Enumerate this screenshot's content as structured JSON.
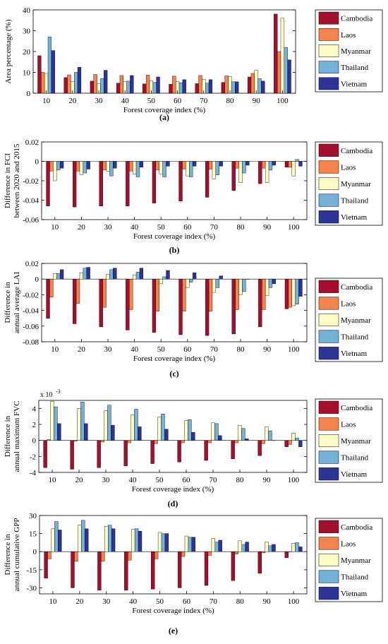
{
  "categories_label": "Forest coverage index (%)",
  "legend": [
    "Cambodia",
    "Laos",
    "Myanmar",
    "Thailand",
    "Vietnam"
  ],
  "colors": [
    "#A50F2D",
    "#F4844C",
    "#FEFCC4",
    "#74B2D9",
    "#2C3597"
  ],
  "chart_data": [
    {
      "type": "bar",
      "panel_label": "(a)",
      "ylabel": "Area percentage (%)",
      "xlabel": "Forest coverage index (%)",
      "categories": [
        "10",
        "20",
        "30",
        "40",
        "50",
        "60",
        "70",
        "80",
        "90",
        "100"
      ],
      "ylim": [
        0,
        40
      ],
      "yticks": [
        0,
        10,
        20,
        30,
        40
      ],
      "ytick_labels": [
        "0",
        "10",
        "20",
        "30",
        "40"
      ],
      "exponent_label": "",
      "series": [
        {
          "name": "Cambodia",
          "values": [
            18,
            7.5,
            5.8,
            4.8,
            4.5,
            4.3,
            4.6,
            5.2,
            7.8,
            38
          ]
        },
        {
          "name": "Laos",
          "values": [
            10,
            8.8,
            9,
            8.5,
            8.7,
            8.2,
            8.5,
            8.3,
            9.5,
            20
          ]
        },
        {
          "name": "Myanmar",
          "values": [
            9.5,
            5.5,
            4.5,
            5.5,
            6,
            5.7,
            6.7,
            8,
            11,
            36
          ]
        },
        {
          "name": "Thailand",
          "values": [
            27,
            10,
            7,
            5.8,
            5.2,
            5,
            4.8,
            5.5,
            7,
            22
          ]
        },
        {
          "name": "Vietnam",
          "values": [
            20.5,
            12.5,
            11,
            8.5,
            7.8,
            6.5,
            6.5,
            5.5,
            5.8,
            16
          ]
        }
      ]
    },
    {
      "type": "bar",
      "panel_label": "(b)",
      "ylabel": [
        "Difference in FCI",
        "between 2020 and 2015"
      ],
      "xlabel": "Forest coverage index (%)",
      "categories": [
        "10",
        "20",
        "30",
        "40",
        "50",
        "60",
        "70",
        "80",
        "90",
        "100"
      ],
      "ylim": [
        -0.06,
        0.02
      ],
      "yticks": [
        -0.06,
        -0.04,
        -0.02,
        0,
        0.02
      ],
      "ytick_labels": [
        "-0.06",
        "-0.04",
        "-0.02",
        "0",
        "0.02"
      ],
      "exponent_label": "",
      "series": [
        {
          "name": "Cambodia",
          "values": [
            -0.046,
            -0.047,
            -0.046,
            -0.046,
            -0.043,
            -0.041,
            -0.037,
            -0.03,
            -0.023,
            -0.006
          ]
        },
        {
          "name": "Laos",
          "values": [
            -0.01,
            -0.01,
            -0.009,
            -0.01,
            -0.009,
            -0.008,
            -0.008,
            -0.007,
            -0.007,
            -0.006
          ]
        },
        {
          "name": "Myanmar",
          "values": [
            -0.02,
            -0.014,
            -0.01,
            -0.013,
            -0.013,
            -0.015,
            -0.018,
            -0.022,
            -0.022,
            -0.015
          ]
        },
        {
          "name": "Thailand",
          "values": [
            -0.009,
            -0.012,
            -0.015,
            -0.016,
            -0.016,
            -0.016,
            -0.014,
            -0.012,
            -0.009,
            0.002
          ]
        },
        {
          "name": "Vietnam",
          "values": [
            -0.007,
            -0.008,
            -0.007,
            -0.006,
            -0.005,
            -0.005,
            -0.005,
            -0.004,
            -0.004,
            -0.005
          ]
        }
      ]
    },
    {
      "type": "bar",
      "panel_label": "(c)",
      "ylabel": [
        "Difference in",
        "annual average LAI"
      ],
      "xlabel": "Forest coverage index (%)",
      "categories": [
        "10",
        "20",
        "30",
        "40",
        "50",
        "60",
        "70",
        "80",
        "90",
        "100"
      ],
      "ylim": [
        -0.08,
        0.02
      ],
      "yticks": [
        -0.08,
        -0.06,
        -0.04,
        -0.02,
        0,
        0.02
      ],
      "ytick_labels": [
        "-0.08",
        "-0.06",
        "-0.04",
        "-0.02",
        "0",
        "0.02"
      ],
      "exponent_label": "",
      "series": [
        {
          "name": "Cambodia",
          "values": [
            -0.05,
            -0.057,
            -0.061,
            -0.065,
            -0.068,
            -0.071,
            -0.072,
            -0.07,
            -0.061,
            -0.038
          ]
        },
        {
          "name": "Laos",
          "values": [
            -0.023,
            -0.031,
            -0.036,
            -0.039,
            -0.041,
            -0.041,
            -0.041,
            -0.039,
            -0.039,
            -0.036
          ]
        },
        {
          "name": "Myanmar",
          "values": [
            0.007,
            0.008,
            0.006,
            0.005,
            -0.006,
            -0.011,
            -0.017,
            -0.02,
            -0.021,
            -0.034
          ]
        },
        {
          "name": "Thailand",
          "values": [
            0.007,
            0.014,
            0.012,
            0.009,
            0.003,
            -0.004,
            -0.011,
            -0.016,
            -0.011,
            -0.032
          ]
        },
        {
          "name": "Vietnam",
          "values": [
            0.012,
            0.015,
            0.014,
            0.014,
            0.011,
            0.008,
            0.004,
            0.0,
            -0.006,
            -0.022
          ]
        }
      ]
    },
    {
      "type": "bar",
      "panel_label": "(d)",
      "ylabel": [
        "Difference in",
        "annual maximum FVC"
      ],
      "xlabel": "Forest coverage index (%)",
      "categories": [
        "10",
        "20",
        "30",
        "40",
        "50",
        "60",
        "70",
        "80",
        "90",
        "100"
      ],
      "ylim": [
        -4,
        5
      ],
      "yticks": [
        -4,
        -2,
        0,
        2,
        4
      ],
      "ytick_labels": [
        "-4",
        "-2",
        "0",
        "2",
        "4"
      ],
      "exponent_label": "x 10",
      "exponent_power": "-3",
      "series": [
        {
          "name": "Cambodia",
          "values": [
            -3.4,
            -3.6,
            -3.4,
            -3.2,
            -2.9,
            -2.7,
            -2.5,
            -2.3,
            -1.9,
            -0.8
          ]
        },
        {
          "name": "Laos",
          "values": [
            0.1,
            -0.1,
            -0.2,
            -0.3,
            -0.4,
            -0.3,
            -0.3,
            -0.3,
            -0.4,
            -0.5
          ]
        },
        {
          "name": "Myanmar",
          "values": [
            4.9,
            4.0,
            3.7,
            3.2,
            2.9,
            2.5,
            2.2,
            1.9,
            1.7,
            0.9
          ]
        },
        {
          "name": "Thailand",
          "values": [
            4.2,
            4.8,
            4.4,
            3.9,
            3.3,
            2.6,
            2.1,
            1.5,
            1.2,
            0.3
          ]
        },
        {
          "name": "Vietnam",
          "values": [
            2.1,
            2.1,
            1.9,
            1.7,
            1.4,
            1.0,
            0.6,
            0.2,
            0.0,
            -0.8
          ]
        }
      ]
    },
    {
      "type": "bar",
      "panel_label": "(e)",
      "ylabel": [
        "Difference in",
        "annual cumulative GPP"
      ],
      "xlabel": "Forest coverage index (%)",
      "categories": [
        "10",
        "20",
        "30",
        "40",
        "50",
        "60",
        "70",
        "80",
        "90",
        "100"
      ],
      "ylim": [
        -35,
        30
      ],
      "yticks": [
        -30,
        -15,
        0,
        15,
        30
      ],
      "ytick_labels": [
        "-30",
        "-15",
        "0",
        "15",
        "30"
      ],
      "exponent_label": "",
      "series": [
        {
          "name": "Cambodia",
          "values": [
            -22,
            -30,
            -32,
            -32,
            -31,
            -30,
            -28,
            -24,
            -18,
            -5
          ]
        },
        {
          "name": "Laos",
          "values": [
            -6,
            -8,
            -8,
            -7,
            -6,
            -4,
            -3,
            -2,
            -1,
            0
          ]
        },
        {
          "name": "Myanmar",
          "values": [
            19,
            22,
            21,
            18.5,
            16,
            13,
            11,
            9,
            8,
            7
          ]
        },
        {
          "name": "Thailand",
          "values": [
            25,
            26,
            22,
            19,
            15,
            12,
            8,
            6,
            5,
            7.5
          ]
        },
        {
          "name": "Vietnam",
          "values": [
            18,
            19,
            19,
            17,
            15,
            12,
            9.5,
            8,
            6,
            4
          ]
        }
      ]
    }
  ]
}
